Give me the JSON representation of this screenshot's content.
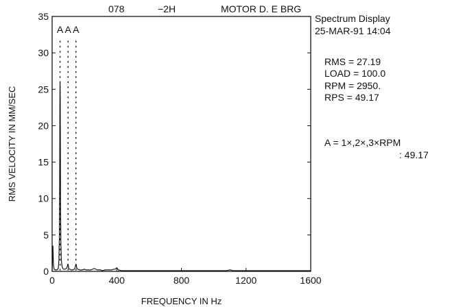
{
  "chart_data": {
    "type": "line",
    "header": [
      "078",
      "−2H",
      "MOTOR D. E BRG"
    ],
    "xlabel": "FREQUENCY IN Hz",
    "ylabel": "RMS VELOCITY IN MM/SEC",
    "xlim": [
      0,
      1600
    ],
    "ylim": [
      0,
      35
    ],
    "x_ticks": [
      0,
      400,
      800,
      1200,
      1600
    ],
    "y_ticks": [
      0,
      5,
      10,
      15,
      20,
      25,
      30,
      35
    ],
    "grid": false,
    "markers": {
      "label": "A",
      "x": [
        49.17,
        98.34,
        147.51
      ]
    },
    "series": [
      {
        "x": [
          0,
          3,
          5,
          8,
          12,
          20,
          30,
          38,
          42,
          45,
          47,
          48,
          49,
          50,
          51,
          52,
          54,
          57,
          62,
          70,
          80,
          88,
          93,
          96,
          98,
          100,
          103,
          108,
          118,
          128,
          138,
          143,
          146,
          148,
          150,
          153,
          158,
          170,
          185,
          200,
          210,
          220,
          240,
          260,
          280,
          290,
          300,
          310,
          330,
          350,
          370,
          380,
          390,
          400,
          410,
          430,
          480,
          540,
          600,
          700,
          800,
          900,
          1000,
          1080,
          1100,
          1120,
          1200,
          1300,
          1400,
          1500,
          1600
        ],
        "values": [
          0.0,
          2.0,
          3.5,
          1.0,
          0.3,
          0.2,
          0.2,
          0.4,
          1.5,
          5.0,
          14.0,
          23.0,
          26.0,
          24.0,
          18.0,
          10.0,
          4.0,
          1.5,
          0.6,
          0.3,
          0.3,
          0.4,
          0.6,
          0.9,
          1.0,
          0.8,
          0.4,
          0.3,
          0.2,
          0.2,
          0.3,
          0.6,
          0.9,
          1.0,
          0.8,
          0.4,
          0.3,
          0.2,
          0.2,
          0.3,
          0.2,
          0.2,
          0.2,
          0.4,
          0.2,
          0.2,
          0.2,
          0.1,
          0.2,
          0.2,
          0.2,
          0.3,
          0.3,
          0.5,
          0.2,
          0.1,
          0.1,
          0.1,
          0.1,
          0.1,
          0.1,
          0.1,
          0.1,
          0.1,
          0.2,
          0.1,
          0.1,
          0.1,
          0.1,
          0.1,
          0.1
        ]
      }
    ]
  },
  "side": {
    "line1": "Spectrum Display",
    "line2": "25-MAR-91 14:04",
    "rms": "RMS = 27.19",
    "load": "LOAD = 100.0",
    "rpm": "RPM = 2950.",
    "rps": "RPS = 49.17",
    "marker_def": "A = 1×,2×,3×RPM",
    "marker_value": ": 49.17"
  }
}
